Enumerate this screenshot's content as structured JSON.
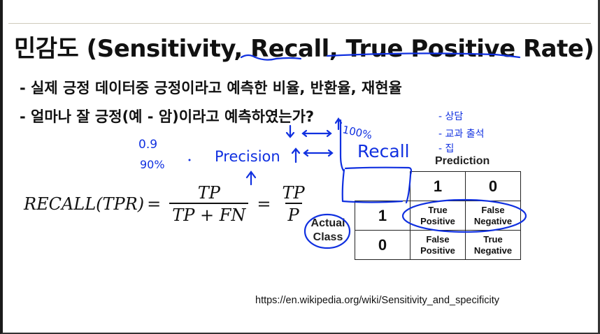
{
  "slide": {
    "title": "민감도 (Sensitivity, Recall, True Positive Rate)",
    "bullets": [
      "- 실제 긍정 데이터중 긍정이라고 예측한 비율, 반환율, 재현율",
      "- 얼마나 잘 긍정(예 - 암)이라고 예측하였는가?"
    ],
    "formula": {
      "lhs": "RECALL(TPR)",
      "eq": "=",
      "frac1_num": "TP",
      "frac1_den": "TP + FN",
      "frac2_num": "TP",
      "frac2_den": "P"
    },
    "confusion_matrix": {
      "prediction_label": "Prediction",
      "actual_label_line1": "Actual",
      "actual_label_line2": "Class",
      "pred_headers": [
        "1",
        "0"
      ],
      "rows": [
        {
          "actual": "1",
          "cells": [
            [
              "True",
              "Positive"
            ],
            [
              "False",
              "Negative"
            ]
          ]
        },
        {
          "actual": "0",
          "cells": [
            [
              "False",
              "Positive"
            ],
            [
              "True",
              "Negative"
            ]
          ]
        }
      ]
    },
    "source_url": "https://en.wikipedia.org/wiki/Sensitivity_and_specificity"
  },
  "annotations": {
    "ink_color": "#1030e0",
    "value_decimal": "0.9",
    "value_percent": "90%",
    "precision": "Precision",
    "hundred_percent": "100%",
    "recall": "Recall",
    "list": [
      "- 상담",
      "- 교과 출석",
      "- 집"
    ]
  }
}
